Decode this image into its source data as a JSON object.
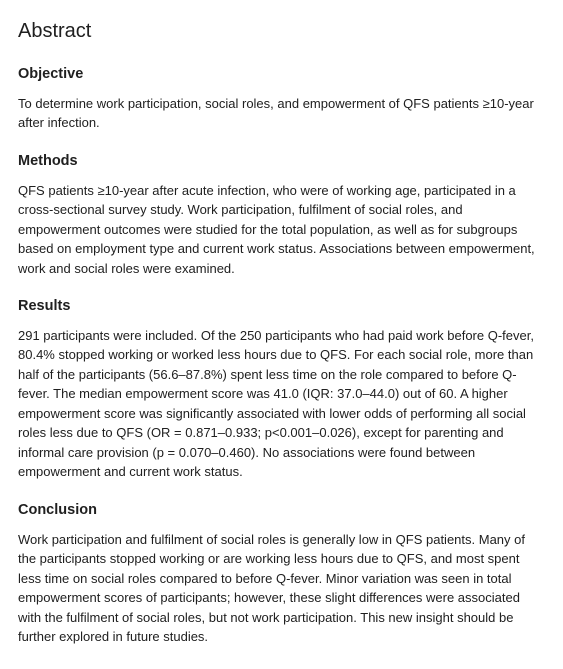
{
  "abstract": {
    "title": "Abstract",
    "sections": {
      "objective": {
        "heading": "Objective",
        "body": "To determine work participation, social roles, and empowerment of QFS patients ≥10-year after infection."
      },
      "methods": {
        "heading": "Methods",
        "body": "QFS patients ≥10-year after acute infection, who were of working age, participated in a cross-sectional survey study. Work participation, fulfilment of social roles, and empowerment outcomes were studied for the total population, as well as for subgroups based on employment type and current work status. Associations between empowerment, work and social roles were examined."
      },
      "results": {
        "heading": "Results",
        "body": "291 participants were included. Of the 250 participants who had paid work before Q-fever, 80.4% stopped working or worked less hours due to QFS. For each social role, more than half of the participants (56.6–87.8%) spent less time on the role compared to before Q-fever. The median empowerment score was 41.0 (IQR: 37.0–44.0) out of 60. A higher empowerment score was significantly associated with lower odds of performing all social roles less due to QFS (OR = 0.871–0.933; p<0.001–0.026), except for parenting and informal care provision (p = 0.070–0.460). No associations were found between empowerment and current work status."
      },
      "conclusion": {
        "heading": "Conclusion",
        "body": "Work participation and fulfilment of social roles is generally low in QFS patients. Many of the participants stopped working or are working less hours due to QFS, and most spent less time on social roles compared to before Q-fever. Minor variation was seen in total empowerment scores of participants; however, these slight differences were associated with the fulfilment of social roles, but not work participation. This new insight should be further explored in future studies."
      }
    }
  }
}
